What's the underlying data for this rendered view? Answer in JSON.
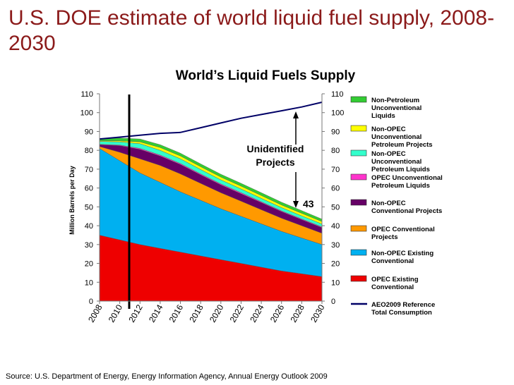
{
  "slide": {
    "title": "U.S. DOE estimate of world liquid fuel supply, 2008-2030",
    "source": "Source: U.S. Department of Energy, Energy Information Agency, Annual Energy Outlook 2009"
  },
  "chart_data": {
    "type": "area",
    "title": "World’s Liquid Fuels Supply",
    "ylabel": "Million Barrels per Day",
    "xlabel": "",
    "ylim": [
      0,
      110
    ],
    "yticks": [
      0,
      10,
      20,
      30,
      40,
      50,
      60,
      70,
      80,
      90,
      100,
      110
    ],
    "x": [
      2008,
      2010,
      2012,
      2014,
      2016,
      2018,
      2020,
      2022,
      2024,
      2026,
      2028,
      2030
    ],
    "xtick_labels": [
      "2008",
      "2010",
      "2012",
      "2014",
      "2016",
      "2018",
      "2020",
      "2022",
      "2024",
      "2026",
      "2028",
      "2030"
    ],
    "stacked": true,
    "grid": false,
    "legend_position": "right",
    "series": [
      {
        "name": "OPEC Existing Conventional",
        "color": "#ee0000",
        "values": [
          35,
          32.5,
          30,
          28,
          26,
          24,
          22,
          20,
          18,
          16,
          14.5,
          13
        ]
      },
      {
        "name": "Non-OPEC Existing Conventional",
        "color": "#00b0f0",
        "values": [
          46,
          42,
          38,
          35,
          32,
          29.5,
          27,
          25,
          23,
          21,
          19,
          17
        ]
      },
      {
        "name": "OPEC Conventional Projects",
        "color": "#ff9900",
        "values": [
          1,
          4.5,
          7.5,
          9,
          9.5,
          9,
          8.5,
          8,
          7.5,
          7,
          6.5,
          6
        ]
      },
      {
        "name": "Non-OPEC Conventional Projects",
        "color": "#660066",
        "values": [
          1,
          3.5,
          5,
          5,
          5,
          4.5,
          4.2,
          4,
          3.8,
          3.5,
          3.2,
          3
        ]
      },
      {
        "name": "OPEC Unconventional Petroleum Liquids",
        "color": "#ff33cc",
        "values": [
          0.2,
          0.3,
          0.5,
          0.5,
          0.5,
          0.5,
          0.5,
          0.5,
          0.4,
          0.4,
          0.4,
          0.4
        ]
      },
      {
        "name": "Non-OPEC Unconventional Petroleum Liquids",
        "color": "#33ffcc",
        "values": [
          1.5,
          1.7,
          2.5,
          2.5,
          2.5,
          2.3,
          2.1,
          2,
          1.8,
          1.7,
          1.6,
          1.5
        ]
      },
      {
        "name": "Non-OPEC Unconventional Petroleum Projects",
        "color": "#ffff00",
        "values": [
          0.3,
          0.5,
          1,
          1.5,
          1.5,
          1.5,
          1.5,
          1.5,
          1.5,
          1.4,
          1.4,
          1.3
        ]
      },
      {
        "name": "Non-Petroleum Unconventional Liquids",
        "color": "#33cc33",
        "values": [
          1,
          1.5,
          1.5,
          1.5,
          1.5,
          1.5,
          1.5,
          1.5,
          1.5,
          1.5,
          1.4,
          1.3
        ]
      }
    ],
    "line_series": {
      "name": "AEO2009 Reference Total Consumption",
      "color": "#000066",
      "values": [
        86,
        87,
        88,
        89,
        89.5,
        92,
        94.5,
        97,
        99,
        101,
        103,
        105.5
      ]
    },
    "annotations": {
      "label_line1": "Unidentified",
      "label_line2": "Projects",
      "value_label": "43"
    }
  }
}
